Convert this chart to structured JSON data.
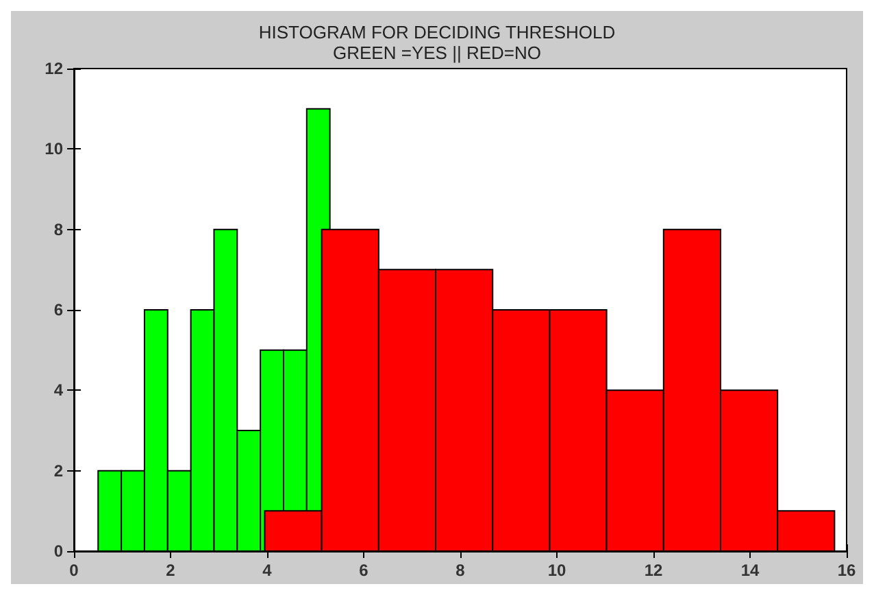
{
  "chart_data": {
    "type": "bar",
    "title": "HISTOGRAM FOR DECIDING THRESHOLD",
    "subtitle": "GREEN =YES || RED=NO",
    "series": [
      {
        "color": "#00ff00",
        "x": [
          0.74,
          1.22,
          1.7,
          2.18,
          2.66,
          3.14,
          3.62,
          4.1,
          4.58,
          5.06
        ],
        "values": [
          2,
          2,
          6,
          2,
          6,
          8,
          3,
          5,
          5,
          11
        ]
      },
      {
        "color": "#ff0000",
        "x": [
          4.54,
          5.72,
          6.9,
          8.08,
          9.26,
          10.44,
          11.62,
          12.8,
          13.98,
          15.16
        ],
        "values": [
          1,
          8,
          7,
          7,
          6,
          6,
          4,
          8,
          4,
          1
        ]
      }
    ],
    "xlim": [
      0,
      16
    ],
    "xticks": [
      0,
      2,
      4,
      6,
      8,
      10,
      12,
      14,
      16
    ],
    "ylim": [
      0,
      12
    ],
    "yticks": [
      0,
      2,
      4,
      6,
      8,
      10,
      12
    ]
  }
}
